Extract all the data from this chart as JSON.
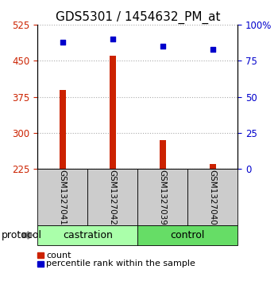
{
  "title": "GDS5301 / 1454632_PM_at",
  "samples": [
    "GSM1327041",
    "GSM1327042",
    "GSM1327039",
    "GSM1327040"
  ],
  "counts": [
    390,
    460,
    285,
    235
  ],
  "percentiles": [
    88,
    90,
    85,
    83
  ],
  "ylim_left": [
    225,
    525
  ],
  "yticks_left": [
    225,
    300,
    375,
    450,
    525
  ],
  "ylim_right": [
    0,
    100
  ],
  "yticks_right": [
    0,
    25,
    50,
    75,
    100
  ],
  "bar_color": "#cc2200",
  "dot_color": "#0000cc",
  "bar_width": 0.12,
  "groups": [
    {
      "label": "castration",
      "indices": [
        0,
        1
      ],
      "color": "#aaffaa"
    },
    {
      "label": "control",
      "indices": [
        2,
        3
      ],
      "color": "#66dd66"
    }
  ],
  "protocol_label": "protocol",
  "legend_count_label": "count",
  "legend_pct_label": "percentile rank within the sample",
  "left_axis_color": "#cc2200",
  "right_axis_color": "#0000cc",
  "grid_color": "#aaaaaa",
  "sample_box_color": "#cccccc",
  "title_fontsize": 11,
  "tick_fontsize": 8.5,
  "sample_fontsize": 7.5,
  "group_fontsize": 9,
  "protocol_fontsize": 9,
  "legend_fontsize": 8
}
